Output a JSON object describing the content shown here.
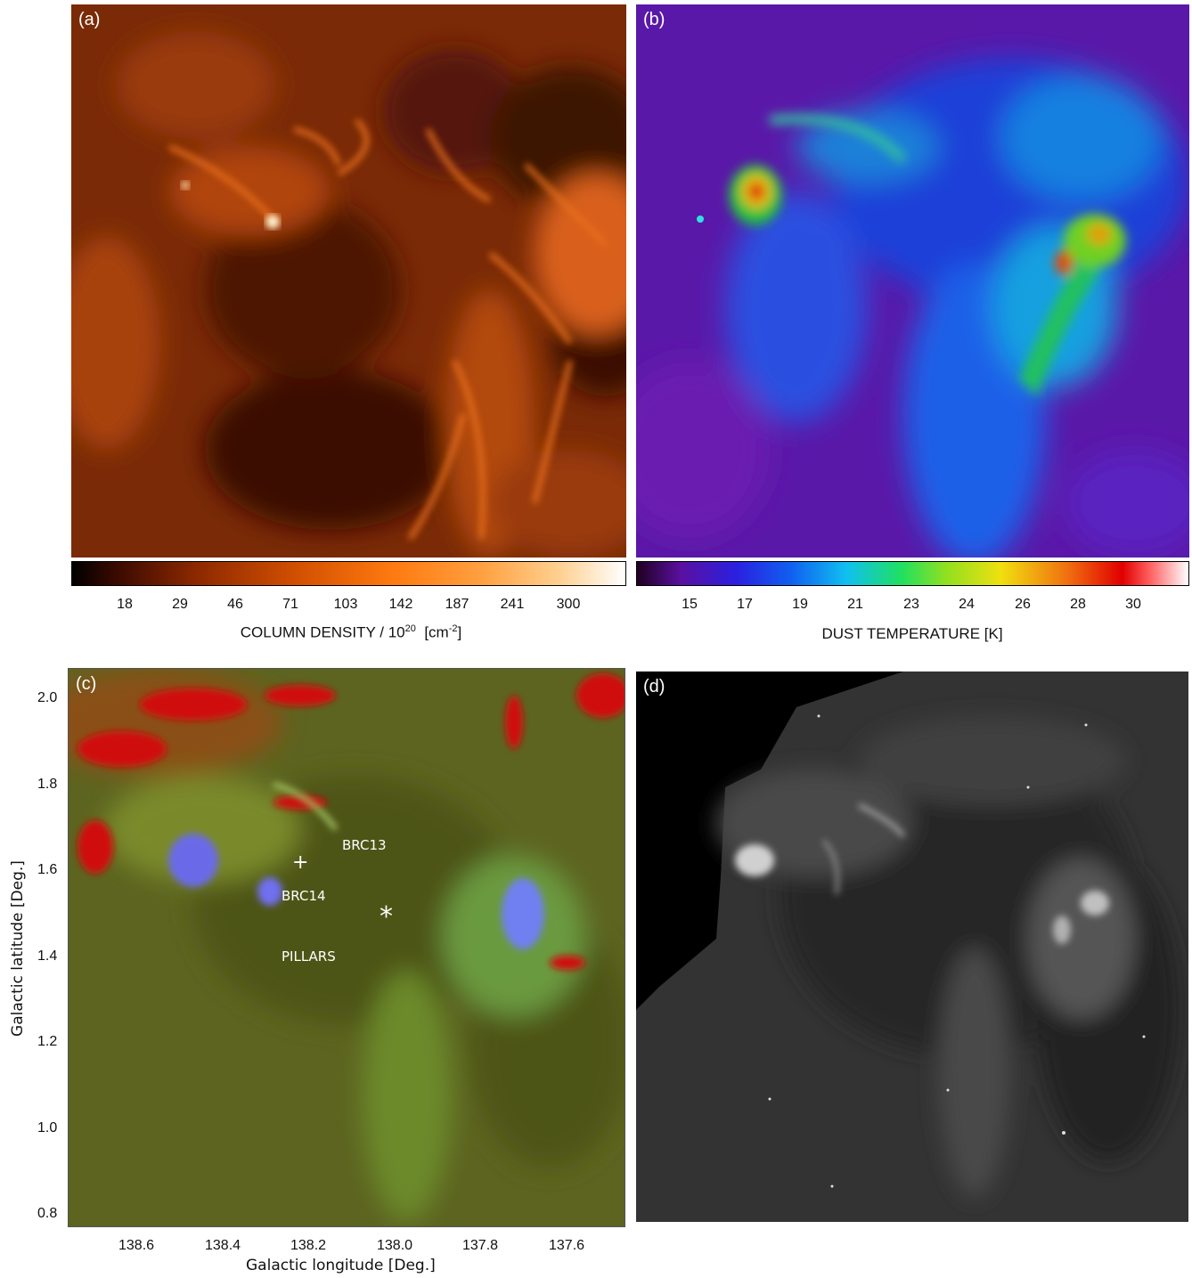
{
  "panels": {
    "a": {
      "label": "(a)"
    },
    "b": {
      "label": "(b)"
    },
    "c": {
      "label": "(c)",
      "annotations": {
        "brc13": "BRC13",
        "brc14": "BRC14",
        "pillars": "PILLARS",
        "plus_marker": "+",
        "star_marker": "*"
      },
      "xaxis": {
        "label": "Galactic longitude [Deg.]",
        "ticks": [
          "138.6",
          "138.4",
          "138.2",
          "138.0",
          "137.8",
          "137.6"
        ]
      },
      "yaxis": {
        "label": "Galactic latitude [Deg.]",
        "ticks": [
          "2.0",
          "1.8",
          "1.6",
          "1.4",
          "1.2",
          "1.0",
          "0.8"
        ]
      }
    },
    "d": {
      "label": "(d)"
    }
  },
  "colorbars": {
    "density": {
      "ticks": [
        "18",
        "29",
        "46",
        "71",
        "103",
        "142",
        "187",
        "241",
        "300"
      ],
      "title_main": "COLUMN DENSITY / 10",
      "title_exp": "20",
      "title_unit": "[cm",
      "title_unit_exp": "-2",
      "title_close": "]"
    },
    "temperature": {
      "ticks": [
        "15",
        "17",
        "19",
        "21",
        "23",
        "24",
        "26",
        "28",
        "30"
      ],
      "title": "DUST TEMPERATURE  [K]"
    }
  },
  "colors": {
    "density_map": [
      "#000000",
      "#5a1400",
      "#c84a00",
      "#ff8a1e",
      "#ffc87a",
      "#ffffff"
    ],
    "temperature_map": [
      "#3a0040",
      "#4a10b0",
      "#1030e0",
      "#10a0f0",
      "#20e020",
      "#e0e010",
      "#e04010",
      "#e00000",
      "#ffffff"
    ]
  }
}
